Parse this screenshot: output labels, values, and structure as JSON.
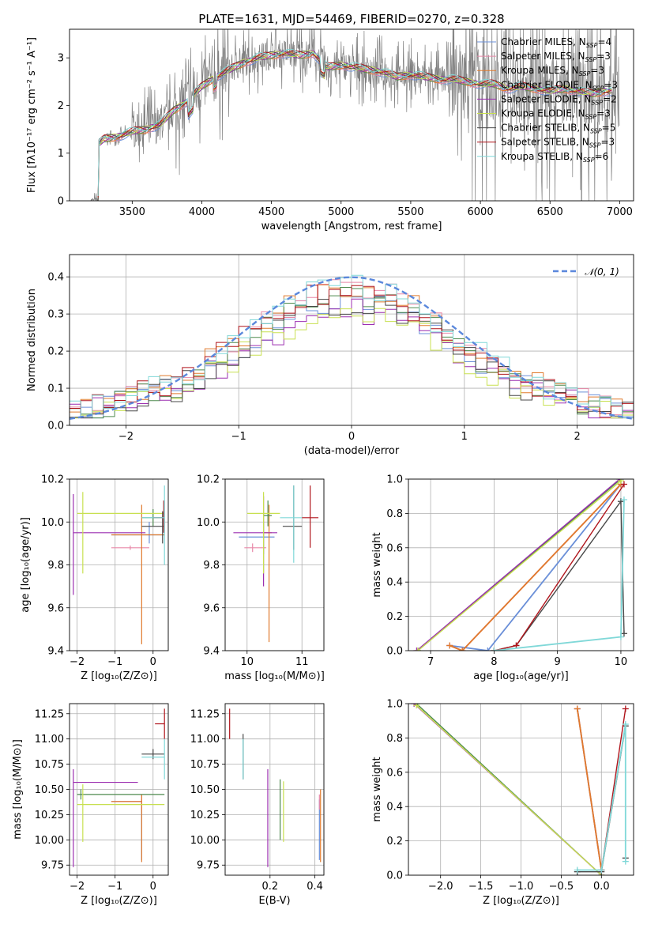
{
  "colors": {
    "Chabrier MILES": "#6a8fd8",
    "Salpeter MILES": "#e888a8",
    "Kroupa MILES": "#e07a2c",
    "Chabrier ELODIE": "#4e8a4e",
    "Salpeter ELODIE": "#9c2fb0",
    "Kroupa ELODIE": "#c8e050",
    "Chabrier STELIB": "#484848",
    "Salpeter STELIB": "#b0151c",
    "Kroupa STELIB": "#80d8d8",
    "normal": "#5b88dc",
    "data": "#808080"
  },
  "chart_data": [
    {
      "id": "spectrum",
      "type": "line",
      "title": "PLATE=1631, MJD=54469, FIBERID=0270, z=0.328",
      "xlabel": "wavelength [Angstrom, rest frame]",
      "ylabel": "Flux [fλ10⁻¹⁷ erg cm⁻² s⁻¹ A⁻¹]",
      "xlim": [
        3050,
        7100
      ],
      "ylim": [
        0,
        3.6
      ],
      "xticks": [
        3500,
        4000,
        4500,
        5000,
        5500,
        6000,
        6500,
        7000
      ],
      "yticks": [
        0,
        1,
        2,
        3
      ],
      "legend": [
        {
          "label": "Chabrier MILES, N",
          "sub": "SSP",
          "suffix": "=4"
        },
        {
          "label": "Salpeter MILES, N",
          "sub": "SSP",
          "suffix": "=3"
        },
        {
          "label": "Kroupa MILES, N",
          "sub": "SSP",
          "suffix": "=3"
        },
        {
          "label": "Chabrier ELODIE, N",
          "sub": "SSP",
          "suffix": "=3"
        },
        {
          "label": "Salpeter ELODIE, N",
          "sub": "SSP",
          "suffix": "=2"
        },
        {
          "label": "Kroupa ELODIE, N",
          "sub": "SSP",
          "suffix": "=3"
        },
        {
          "label": "Chabrier STELIB, N",
          "sub": "SSP",
          "suffix": "=5"
        },
        {
          "label": "Salpeter STELIB, N",
          "sub": "SSP",
          "suffix": "=3"
        },
        {
          "label": "Kroupa STELIB, N",
          "sub": "SSP",
          "suffix": "=6"
        }
      ],
      "legend_position": "upper right",
      "model_x": [
        3260,
        3300,
        3400,
        3500,
        3600,
        3700,
        3800,
        3900,
        4000,
        4100,
        4200,
        4300,
        4400,
        4500,
        4600,
        4700,
        4800,
        4900,
        5000,
        5100,
        5200,
        5300,
        5400,
        5500,
        5600,
        5700,
        5800,
        5900,
        6000,
        6100,
        6200,
        6300,
        6400,
        6500,
        6600,
        6700,
        6800,
        6900
      ],
      "model_y": [
        1.2,
        1.3,
        1.35,
        1.45,
        1.5,
        1.6,
        1.9,
        2.1,
        2.4,
        2.6,
        2.75,
        2.9,
        3.0,
        3.05,
        3.1,
        3.05,
        3.1,
        2.8,
        2.85,
        2.8,
        2.75,
        2.7,
        2.6,
        2.65,
        2.6,
        2.55,
        2.55,
        2.5,
        2.45,
        2.45,
        2.35,
        2.4,
        2.35,
        2.3,
        2.35,
        2.3,
        2.25,
        2.3
      ]
    },
    {
      "id": "residuals",
      "type": "line",
      "xlabel": "(data-model)/error",
      "ylabel": "Normed distribution",
      "xlim": [
        -2.5,
        2.5
      ],
      "ylim": [
        0,
        0.46
      ],
      "xticks": [
        -2,
        -1,
        0,
        1,
        2
      ],
      "yticks": [
        0.0,
        0.1,
        0.2,
        0.3,
        0.4
      ],
      "legend": "𝒩(0, 1)",
      "legend_position": "upper right",
      "grid": true
    },
    {
      "id": "age_vs_Z",
      "type": "scatter",
      "xlabel": "Z [log₁₀(Z/Z⊙)]",
      "ylabel": "age  [log₁₀(age/yr)]",
      "xlim": [
        -2.2,
        0.4
      ],
      "ylim": [
        9.4,
        10.2
      ],
      "xticks": [
        -2,
        -1,
        0
      ],
      "yticks": [
        9.4,
        9.6,
        9.8,
        10.0,
        10.2
      ],
      "grid": true,
      "points": [
        {
          "series": "Chabrier MILES",
          "x": -0.1,
          "xlo": -1.1,
          "xhi": 0.3,
          "y": 9.94,
          "ylo": 9.9,
          "yhi": 10.0
        },
        {
          "series": "Salpeter MILES",
          "x": -0.6,
          "xlo": -1.1,
          "xhi": -0.1,
          "y": 9.88,
          "ylo": 9.87,
          "yhi": 9.89
        },
        {
          "series": "Kroupa MILES",
          "x": -0.3,
          "xlo": -1.1,
          "xhi": 0.3,
          "y": 9.94,
          "ylo": 9.43,
          "yhi": 10.08
        },
        {
          "series": "Chabrier ELODIE",
          "x": 0.0,
          "xlo": -0.3,
          "xhi": 0.3,
          "y": 10.02,
          "ylo": 9.98,
          "yhi": 10.06
        },
        {
          "series": "Salpeter ELODIE",
          "x": -2.1,
          "xlo": -2.1,
          "xhi": -0.2,
          "y": 9.95,
          "ylo": 9.66,
          "yhi": 10.13
        },
        {
          "series": "Kroupa ELODIE",
          "x": -1.85,
          "xlo": -2.0,
          "xhi": 0.3,
          "y": 10.04,
          "ylo": 9.76,
          "yhi": 10.14
        },
        {
          "series": "Chabrier STELIB",
          "x": 0.25,
          "xlo": -0.3,
          "xhi": 0.3,
          "y": 9.98,
          "ylo": 9.9,
          "yhi": 10.05
        },
        {
          "series": "Salpeter STELIB",
          "x": 0.28,
          "xlo": 0.0,
          "xhi": 0.3,
          "y": 10.02,
          "ylo": 9.95,
          "yhi": 10.1
        },
        {
          "series": "Kroupa STELIB",
          "x": 0.3,
          "xlo": -0.3,
          "xhi": 0.3,
          "y": 10.02,
          "ylo": 9.8,
          "yhi": 10.17
        }
      ]
    },
    {
      "id": "age_vs_mass",
      "type": "scatter",
      "xlabel": "mass [log₁₀(M/M⊙)]",
      "ylabel": "",
      "xlim": [
        9.6,
        11.4
      ],
      "ylim": [
        9.4,
        10.2
      ],
      "xticks": [
        10,
        11
      ],
      "yticks": [
        9.4,
        9.6,
        9.8,
        10.0,
        10.2
      ],
      "grid": true,
      "points": [
        {
          "series": "Chabrier MILES",
          "x": 10.3,
          "xlo": 9.85,
          "xhi": 10.5,
          "y": 9.93,
          "ylo": 9.85,
          "yhi": 10.0
        },
        {
          "series": "Salpeter MILES",
          "x": 10.1,
          "xlo": 9.95,
          "xhi": 10.35,
          "y": 9.88,
          "ylo": 9.86,
          "yhi": 9.9
        },
        {
          "series": "Kroupa MILES",
          "x": 10.4,
          "xlo": 10.3,
          "xhi": 10.45,
          "y": 9.95,
          "ylo": 9.44,
          "yhi": 10.08
        },
        {
          "series": "Chabrier ELODIE",
          "x": 10.38,
          "xlo": 10.3,
          "xhi": 10.45,
          "y": 10.03,
          "ylo": 9.98,
          "yhi": 10.1
        },
        {
          "series": "Salpeter ELODIE",
          "x": 10.3,
          "xlo": 9.75,
          "xhi": 10.55,
          "y": 9.95,
          "ylo": 9.7,
          "yhi": 10.12
        },
        {
          "series": "Kroupa ELODIE",
          "x": 10.3,
          "xlo": 10.0,
          "xhi": 10.6,
          "y": 10.04,
          "ylo": 9.76,
          "yhi": 10.14
        },
        {
          "series": "Chabrier STELIB",
          "x": 10.85,
          "xlo": 10.65,
          "xhi": 11.0,
          "y": 9.98,
          "ylo": 9.87,
          "yhi": 10.17
        },
        {
          "series": "Salpeter STELIB",
          "x": 11.15,
          "xlo": 11.0,
          "xhi": 11.3,
          "y": 10.02,
          "ylo": 9.88,
          "yhi": 10.17
        },
        {
          "series": "Kroupa STELIB",
          "x": 10.85,
          "xlo": 10.6,
          "xhi": 11.0,
          "y": 10.02,
          "ylo": 9.81,
          "yhi": 10.17
        }
      ]
    },
    {
      "id": "massweight_vs_age",
      "type": "line",
      "xlabel": "age  [log₁₀(age/yr)]",
      "ylabel": "mass weight",
      "xlim": [
        6.65,
        10.2
      ],
      "ylim": [
        0,
        1
      ],
      "xticks": [
        7,
        8,
        9,
        10
      ],
      "yticks": [
        0.0,
        0.2,
        0.4,
        0.6,
        0.8,
        1.0
      ],
      "grid": true,
      "series": [
        {
          "name": "Chabrier MILES",
          "x": [
            7.3,
            7.9,
            10.0
          ],
          "y": [
            0.03,
            0.0,
            0.97
          ]
        },
        {
          "name": "Salpeter MILES",
          "x": [
            7.3,
            7.5,
            10.0
          ],
          "y": [
            0.03,
            0.0,
            0.97
          ]
        },
        {
          "name": "Kroupa MILES",
          "x": [
            7.3,
            7.5,
            10.0
          ],
          "y": [
            0.03,
            0.0,
            0.97
          ]
        },
        {
          "name": "Chabrier ELODIE",
          "x": [
            6.8,
            10.0
          ],
          "y": [
            0.0,
            1.0
          ]
        },
        {
          "name": "Salpeter ELODIE",
          "x": [
            6.78,
            9.98
          ],
          "y": [
            0.0,
            1.0
          ]
        },
        {
          "name": "Kroupa ELODIE",
          "x": [
            6.8,
            10.0
          ],
          "y": [
            0.0,
            0.99
          ]
        },
        {
          "name": "Chabrier STELIB",
          "x": [
            8.0,
            8.35,
            10.0,
            10.05
          ],
          "y": [
            0.0,
            0.03,
            0.87,
            0.1
          ]
        },
        {
          "name": "Salpeter STELIB",
          "x": [
            8.0,
            8.35,
            10.05
          ],
          "y": [
            0.0,
            0.03,
            0.97
          ]
        },
        {
          "name": "Kroupa STELIB",
          "x": [
            8.0,
            10.0,
            10.05
          ],
          "y": [
            0.0,
            0.08,
            0.88
          ]
        }
      ]
    },
    {
      "id": "mass_vs_Z",
      "type": "scatter",
      "xlabel": "Z [log₁₀(Z/Z⊙)]",
      "ylabel": "mass [log₁₀(M/M⊙)]",
      "xlim": [
        -2.2,
        0.4
      ],
      "ylim": [
        9.65,
        11.35
      ],
      "xticks": [
        -2,
        -1,
        0
      ],
      "yticks": [
        9.75,
        10.0,
        10.25,
        10.5,
        10.75,
        11.0,
        11.25
      ],
      "grid": true,
      "points": [
        {
          "series": "Chabrier MILES",
          "x": -0.3,
          "xlo": -1.1,
          "xhi": -0.3,
          "y": 10.38,
          "ylo": 9.8,
          "yhi": 10.4
        },
        {
          "series": "Salpeter MILES",
          "x": -0.3,
          "xlo": -1.1,
          "xhi": -0.3,
          "y": 10.38,
          "ylo": 10.3,
          "yhi": 10.45
        },
        {
          "series": "Kroupa MILES",
          "x": -0.3,
          "xlo": -1.1,
          "xhi": -0.3,
          "y": 10.38,
          "ylo": 9.78,
          "yhi": 10.45
        },
        {
          "series": "Chabrier ELODIE",
          "x": -1.9,
          "xlo": -2.0,
          "xhi": 0.3,
          "y": 10.45,
          "ylo": 10.4,
          "yhi": 10.5
        },
        {
          "series": "Salpeter ELODIE",
          "x": -2.1,
          "xlo": -2.1,
          "xhi": -0.4,
          "y": 10.57,
          "ylo": 9.73,
          "yhi": 10.7
        },
        {
          "series": "Kroupa ELODIE",
          "x": -1.85,
          "xlo": -2.0,
          "xhi": 0.3,
          "y": 10.35,
          "ylo": 9.98,
          "yhi": 10.55
        },
        {
          "series": "Chabrier STELIB",
          "x": 0.0,
          "xlo": -0.3,
          "xhi": 0.3,
          "y": 10.85,
          "ylo": 10.8,
          "yhi": 10.9
        },
        {
          "series": "Salpeter STELIB",
          "x": 0.3,
          "xlo": 0.05,
          "xhi": 0.3,
          "y": 11.15,
          "ylo": 11.0,
          "yhi": 11.3
        },
        {
          "series": "Kroupa STELIB",
          "x": 0.3,
          "xlo": -0.3,
          "xhi": 0.3,
          "y": 10.82,
          "ylo": 10.6,
          "yhi": 11.0
        }
      ]
    },
    {
      "id": "mass_vs_EBV",
      "type": "scatter",
      "xlabel": "E(B-V)",
      "ylabel": "",
      "xlim": [
        0.0,
        0.44
      ],
      "ylim": [
        9.65,
        11.35
      ],
      "xticks": [
        0.2,
        0.4
      ],
      "yticks": [
        9.75,
        10.0,
        10.25,
        10.5,
        10.75,
        11.0,
        11.25
      ],
      "grid": true,
      "points": [
        {
          "series": "Chabrier MILES",
          "x": 0.42,
          "ylo": 9.8,
          "yhi": 10.4
        },
        {
          "series": "Salpeter MILES",
          "x": 0.42,
          "ylo": 10.3,
          "yhi": 10.45
        },
        {
          "series": "Kroupa MILES",
          "x": 0.425,
          "ylo": 9.78,
          "yhi": 10.5
        },
        {
          "series": "Chabrier ELODIE",
          "x": 0.245,
          "ylo": 10.0,
          "yhi": 10.6
        },
        {
          "series": "Salpeter ELODIE",
          "x": 0.19,
          "ylo": 9.73,
          "yhi": 10.7
        },
        {
          "series": "Kroupa ELODIE",
          "x": 0.26,
          "ylo": 9.98,
          "yhi": 10.58
        },
        {
          "series": "Chabrier STELIB",
          "x": 0.08,
          "ylo": 10.6,
          "yhi": 11.05
        },
        {
          "series": "Salpeter STELIB",
          "x": 0.02,
          "ylo": 11.0,
          "yhi": 11.3
        },
        {
          "series": "Kroupa STELIB",
          "x": 0.08,
          "ylo": 10.6,
          "yhi": 11.0
        }
      ]
    },
    {
      "id": "massweight_vs_Z",
      "type": "line",
      "xlabel": "Z [log₁₀(Z/Z⊙)]",
      "ylabel": "mass weight",
      "xlim": [
        -2.4,
        0.4
      ],
      "ylim": [
        0,
        1
      ],
      "xticks": [
        -2.0,
        -1.5,
        -1.0,
        -0.5,
        0.0
      ],
      "yticks": [
        0.0,
        0.2,
        0.4,
        0.6,
        0.8,
        1.0
      ],
      "grid": true,
      "series": [
        {
          "name": "Chabrier MILES",
          "x": [
            -0.3,
            0.0
          ],
          "y": [
            0.97,
            0.03
          ]
        },
        {
          "name": "Salpeter MILES",
          "x": [
            -0.3,
            0.0
          ],
          "y": [
            0.97,
            0.03
          ]
        },
        {
          "name": "Kroupa MILES",
          "x": [
            -0.3,
            0.0
          ],
          "y": [
            0.97,
            0.03
          ]
        },
        {
          "name": "Chabrier ELODIE",
          "x": [
            -2.3,
            0.0
          ],
          "y": [
            1.0,
            0.0
          ]
        },
        {
          "name": "Salpeter ELODIE",
          "x": [
            -2.33,
            0.0
          ],
          "y": [
            1.0,
            0.0
          ]
        },
        {
          "name": "Kroupa ELODIE",
          "x": [
            -2.3,
            0.0
          ],
          "y": [
            0.99,
            0.0
          ]
        },
        {
          "name": "Chabrier STELIB",
          "x": [
            -0.3,
            0.0,
            0.3,
            0.3
          ],
          "y": [
            0.02,
            0.02,
            0.87,
            0.1
          ]
        },
        {
          "name": "Salpeter STELIB",
          "x": [
            0.0,
            0.3
          ],
          "y": [
            0.03,
            0.97
          ]
        },
        {
          "name": "Kroupa STELIB",
          "x": [
            -0.3,
            0.0,
            0.3,
            0.3
          ],
          "y": [
            0.03,
            0.03,
            0.88,
            0.08
          ]
        }
      ]
    }
  ]
}
